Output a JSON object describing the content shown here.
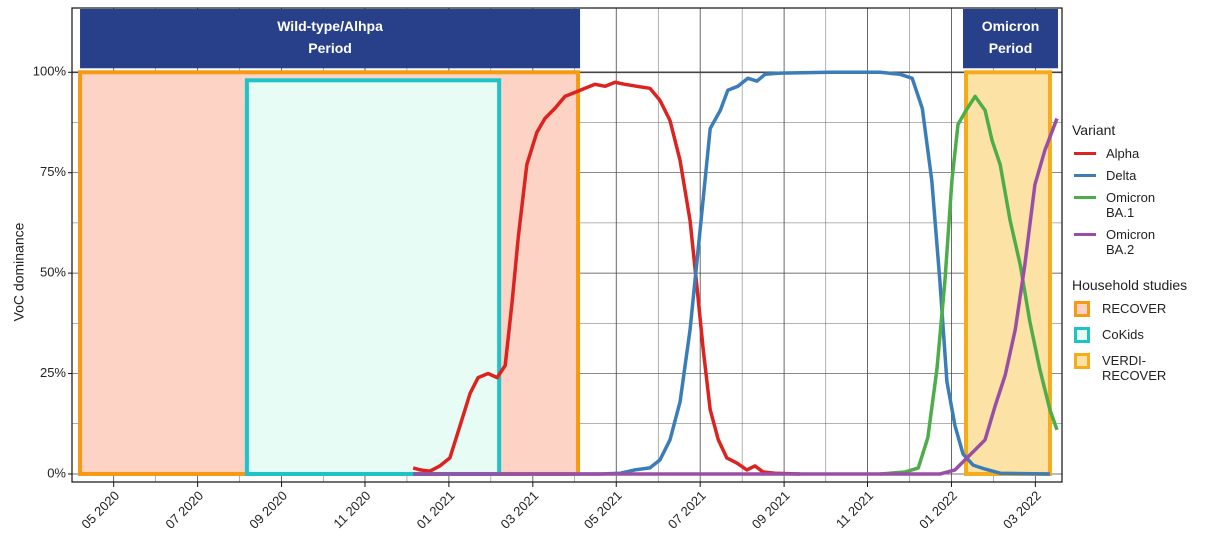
{
  "chart_data": {
    "type": "line",
    "y_label": "VoC dominance",
    "xlim": [
      2020.25,
      2022.22
    ],
    "xticks": [
      {
        "value": 2020.333,
        "label": "05 2020"
      },
      {
        "value": 2020.5,
        "label": "07 2020"
      },
      {
        "value": 2020.667,
        "label": "09 2020"
      },
      {
        "value": 2020.833,
        "label": "11 2020"
      },
      {
        "value": 2021.0,
        "label": "01 2021"
      },
      {
        "value": 2021.167,
        "label": "03 2021"
      },
      {
        "value": 2021.333,
        "label": "05 2021"
      },
      {
        "value": 2021.5,
        "label": "07 2021"
      },
      {
        "value": 2021.667,
        "label": "09 2021"
      },
      {
        "value": 2021.833,
        "label": "11 2021"
      },
      {
        "value": 2022.0,
        "label": "01 2022"
      },
      {
        "value": 2022.167,
        "label": "03 2022"
      }
    ],
    "ylim": [
      -2,
      116
    ],
    "yticks": [
      {
        "value": 0,
        "label": "0%"
      },
      {
        "value": 25,
        "label": "25%"
      },
      {
        "value": 50,
        "label": "50%"
      },
      {
        "value": 75,
        "label": "75%"
      },
      {
        "value": 100,
        "label": "100%"
      }
    ],
    "grid": true,
    "periods": [
      {
        "label": [
          "Wild-type/Alhpa",
          "Period"
        ],
        "start": 2020.266,
        "end": 2021.261,
        "color": "#283f8a"
      },
      {
        "label": [
          "Omicron",
          "Period"
        ],
        "start": 2022.023,
        "end": 2022.212,
        "color": "#283f8a"
      }
    ],
    "studies_title": "Household studies",
    "studies": [
      {
        "name": "RECOVER",
        "edge_color": "#f59a12",
        "fill_color": "#fcd3c4",
        "start": 2020.266,
        "end": 2021.257,
        "range": [
          0,
          100
        ]
      },
      {
        "name": "CoKids",
        "edge_color": "#1cc4c8",
        "fill_color": "#e6fcf4",
        "start": 2020.598,
        "end": 2021.1,
        "range": [
          0,
          98
        ]
      },
      {
        "name": "VERDI-RECOVER",
        "edge_color": "#f5ab1a",
        "fill_color": "#fde2a6",
        "start": 2022.029,
        "end": 2022.196,
        "range": [
          0,
          100
        ]
      }
    ],
    "legend_title": "Variant",
    "series": [
      {
        "name": "Alpha",
        "color": "#dc2320",
        "x": [
          2020.929,
          2020.943,
          2020.962,
          2020.982,
          2021.002,
          2021.022,
          2021.042,
          2021.058,
          2021.078,
          2021.096,
          2021.112,
          2021.126,
          2021.138,
          2021.155,
          2021.175,
          2021.191,
          2021.211,
          2021.231,
          2021.251,
          2021.271,
          2021.291,
          2021.311,
          2021.331,
          2021.35,
          2021.374,
          2021.4,
          2021.42,
          2021.44,
          2021.46,
          2021.48,
          2021.494,
          2021.506,
          2021.52,
          2021.536,
          2021.553,
          2021.573,
          2021.593,
          2021.609,
          2021.625,
          2021.649,
          2021.699
        ],
        "values": [
          1.5,
          1,
          0.7,
          2,
          4,
          12,
          20,
          24,
          25,
          24,
          27,
          43,
          59,
          77,
          85,
          88.5,
          91,
          94,
          95,
          96,
          97,
          96.5,
          97.5,
          97,
          96.5,
          96,
          93,
          88,
          78,
          63,
          46,
          31,
          16,
          8.5,
          4,
          2.7,
          1,
          2,
          0.5,
          0.2,
          0
        ]
      },
      {
        "name": "Delta",
        "color": "#3a7db8",
        "x": [
          2020.929,
          2021.301,
          2021.341,
          2021.37,
          2021.4,
          2021.42,
          2021.44,
          2021.46,
          2021.48,
          2021.5,
          2021.52,
          2021.54,
          2021.555,
          2021.575,
          2021.595,
          2021.613,
          2021.629,
          2021.659,
          2021.758,
          2021.858,
          2021.898,
          2021.922,
          2021.942,
          2021.961,
          2021.977,
          2021.991,
          2022.007,
          2022.023,
          2022.043,
          2022.067,
          2022.097,
          2022.196
        ],
        "values": [
          0,
          0,
          0.2,
          1,
          1.5,
          3.5,
          8.5,
          18,
          36,
          61,
          86,
          90.5,
          95.5,
          96.5,
          98.5,
          97.8,
          99.5,
          99.8,
          100,
          100,
          99.5,
          98.5,
          91,
          73,
          48,
          23,
          12,
          5,
          2.2,
          1.2,
          0.2,
          0
        ]
      },
      {
        "name": "Omicron BA.1",
        "color": "#4cad49",
        "x": [
          2021.858,
          2021.908,
          2021.934,
          2021.953,
          2021.971,
          2021.987,
          2022.001,
          2022.013,
          2022.029,
          2022.047,
          2022.067,
          2022.081,
          2022.097,
          2022.117,
          2022.137,
          2022.156,
          2022.176,
          2022.196,
          2022.21
        ],
        "values": [
          0,
          0.5,
          1.5,
          9,
          26,
          48,
          73,
          87,
          90.5,
          94,
          90.5,
          83,
          77,
          63,
          52,
          38,
          26,
          16,
          11
        ]
      },
      {
        "name": "Omicron BA.2",
        "color": "#9a4fa6",
        "x": [
          2020.929,
          2021.977,
          2022.007,
          2022.027,
          2022.047,
          2022.067,
          2022.087,
          2022.107,
          2022.127,
          2022.146,
          2022.166,
          2022.186,
          2022.21
        ],
        "values": [
          0,
          0,
          1,
          3.5,
          6,
          8.5,
          17,
          24.6,
          36,
          52,
          72,
          80.6,
          88.5
        ]
      }
    ]
  }
}
